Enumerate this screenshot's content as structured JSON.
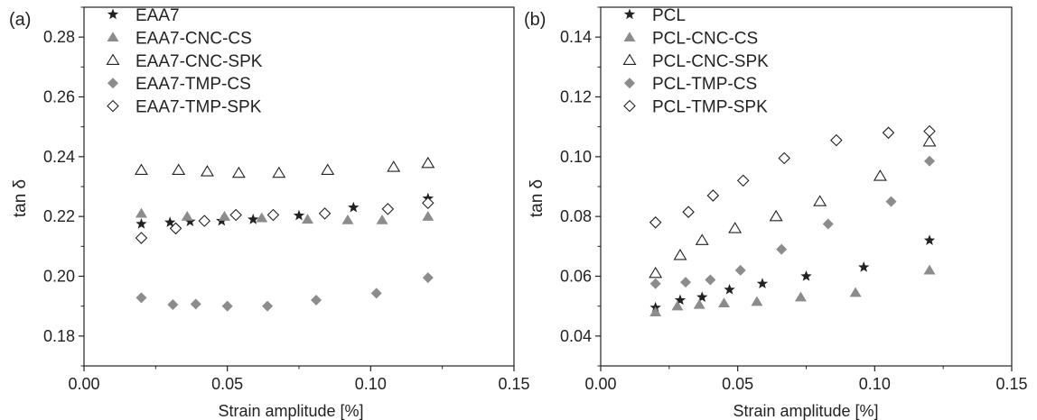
{
  "chart_data": [
    {
      "type": "scatter",
      "panel_label": "(a)",
      "xlabel": "Strain amplitude [%]",
      "ylabel": "tan δ",
      "xlim": [
        0.0,
        0.15
      ],
      "ylim": [
        0.17,
        0.29
      ],
      "xticks": [
        "0.00",
        "0.05",
        "0.10",
        "0.15"
      ],
      "yticks": [
        "0.18",
        "0.20",
        "0.22",
        "0.24",
        "0.26",
        "0.28"
      ],
      "xtick_values": [
        0.0,
        0.05,
        0.1,
        0.15
      ],
      "ytick_values": [
        0.18,
        0.2,
        0.22,
        0.24,
        0.26,
        0.28
      ],
      "grid": false,
      "legend_position": "top-left",
      "series": [
        {
          "name": "EAA7",
          "marker": "star",
          "color": "#222222",
          "x": [
            0.02,
            0.03,
            0.037,
            0.048,
            0.059,
            0.075,
            0.094,
            0.12
          ],
          "y": [
            0.2175,
            0.218,
            0.2183,
            0.2185,
            0.219,
            0.2203,
            0.223,
            0.226
          ]
        },
        {
          "name": "EAA7-CNC-CS",
          "marker": "triangle-filled",
          "color": "#8c8c8c",
          "x": [
            0.02,
            0.036,
            0.049,
            0.062,
            0.078,
            0.092,
            0.104,
            0.12
          ],
          "y": [
            0.221,
            0.22,
            0.22,
            0.2195,
            0.219,
            0.2188,
            0.2188,
            0.22
          ]
        },
        {
          "name": "EAA7-CNC-SPK",
          "marker": "triangle-open",
          "color": "#222222",
          "x": [
            0.02,
            0.033,
            0.043,
            0.054,
            0.068,
            0.085,
            0.108,
            0.12
          ],
          "y": [
            0.2355,
            0.2355,
            0.235,
            0.2345,
            0.2345,
            0.2355,
            0.2365,
            0.2378
          ]
        },
        {
          "name": "EAA7-TMP-CS",
          "marker": "diamond-filled",
          "color": "#8c8c8c",
          "x": [
            0.02,
            0.031,
            0.039,
            0.05,
            0.064,
            0.081,
            0.102,
            0.12
          ],
          "y": [
            0.1928,
            0.1905,
            0.1907,
            0.19,
            0.19,
            0.192,
            0.1943,
            0.1995
          ]
        },
        {
          "name": "EAA7-TMP-SPK",
          "marker": "diamond-open",
          "color": "#222222",
          "x": [
            0.02,
            0.032,
            0.042,
            0.053,
            0.066,
            0.084,
            0.106,
            0.12
          ],
          "y": [
            0.2128,
            0.216,
            0.2185,
            0.2205,
            0.2205,
            0.221,
            0.2225,
            0.2245
          ]
        }
      ]
    },
    {
      "type": "scatter",
      "panel_label": "(b)",
      "xlabel": "Strain amplitude [%]",
      "ylabel": "tan δ",
      "xlim": [
        0.0,
        0.15
      ],
      "ylim": [
        0.03,
        0.15
      ],
      "xticks": [
        "0.00",
        "0.05",
        "0.10",
        "0.15"
      ],
      "yticks": [
        "0.04",
        "0.06",
        "0.08",
        "0.10",
        "0.12",
        "0.14"
      ],
      "xtick_values": [
        0.0,
        0.05,
        0.1,
        0.15
      ],
      "ytick_values": [
        0.04,
        0.06,
        0.08,
        0.1,
        0.12,
        0.14
      ],
      "grid": false,
      "legend_position": "top-left",
      "series": [
        {
          "name": "PCL",
          "marker": "star",
          "color": "#222222",
          "x": [
            0.02,
            0.029,
            0.037,
            0.047,
            0.059,
            0.075,
            0.096,
            0.12
          ],
          "y": [
            0.0495,
            0.052,
            0.053,
            0.0555,
            0.0575,
            0.06,
            0.063,
            0.072
          ]
        },
        {
          "name": "PCL-CNC-CS",
          "marker": "triangle-filled",
          "color": "#8c8c8c",
          "x": [
            0.02,
            0.028,
            0.036,
            0.045,
            0.057,
            0.073,
            0.093,
            0.12
          ],
          "y": [
            0.048,
            0.05,
            0.0505,
            0.051,
            0.0515,
            0.053,
            0.0545,
            0.062
          ]
        },
        {
          "name": "PCL-CNC-SPK",
          "marker": "triangle-open",
          "color": "#222222",
          "x": [
            0.02,
            0.029,
            0.037,
            0.049,
            0.064,
            0.08,
            0.102,
            0.12
          ],
          "y": [
            0.061,
            0.067,
            0.072,
            0.076,
            0.08,
            0.085,
            0.0935,
            0.105
          ]
        },
        {
          "name": "PCL-TMP-CS",
          "marker": "diamond-filled",
          "color": "#8c8c8c",
          "x": [
            0.02,
            0.031,
            0.04,
            0.051,
            0.066,
            0.083,
            0.106,
            0.12
          ],
          "y": [
            0.0575,
            0.058,
            0.0588,
            0.062,
            0.069,
            0.0775,
            0.085,
            0.0985
          ]
        },
        {
          "name": "PCL-TMP-SPK",
          "marker": "diamond-open",
          "color": "#222222",
          "x": [
            0.02,
            0.032,
            0.041,
            0.052,
            0.067,
            0.086,
            0.105,
            0.12
          ],
          "y": [
            0.078,
            0.0815,
            0.087,
            0.092,
            0.0995,
            0.1055,
            0.108,
            0.1085
          ]
        }
      ]
    }
  ]
}
